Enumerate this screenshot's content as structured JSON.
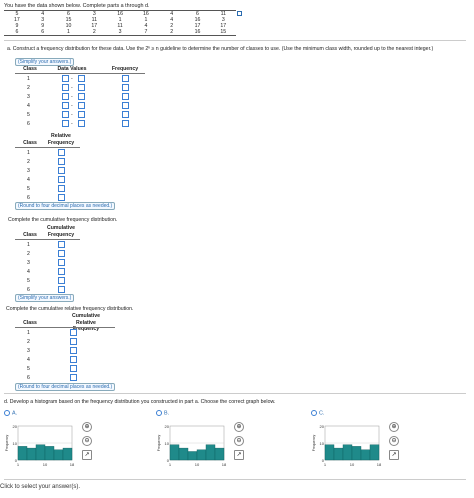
{
  "intro": "You have the data shown below. Complete parts a through d.",
  "raw_data": [
    [
      "5",
      "4",
      "6",
      "3",
      "16",
      "16",
      "4",
      "6",
      "11"
    ],
    [
      "17",
      "3",
      "15",
      "11",
      "1",
      "1",
      "4",
      "16",
      "3"
    ],
    [
      "9",
      "9",
      "10",
      "17",
      "11",
      "4",
      "2",
      "17",
      "17"
    ],
    [
      "6",
      "6",
      "1",
      "2",
      "3",
      "7",
      "2",
      "16",
      "15"
    ]
  ],
  "part_a": "a. Construct a frequency distribution for these data. Use the 2ᵏ ≥ n guideline to determine the number of classes to use. (Use the minimum class width, rounded up to the nearest integer.)",
  "simplify_hint": "(Simplify your answers.)",
  "round_hint": "(Round to four decimal places as needed.)",
  "headers": {
    "class": "Class",
    "data_values": "Data Values",
    "frequency": "Frequency",
    "relative_1": "Relative",
    "relative_2": "Frequency",
    "cum_1": "Cumulative",
    "cum_2": "Frequency",
    "cumrel_1": "Cumulative",
    "cumrel_2": "Relative Frequency"
  },
  "classes": [
    "1",
    "2",
    "3",
    "4",
    "5",
    "6"
  ],
  "dash": "-",
  "cum_prompt": "Complete the cumulative frequency distribution.",
  "cumrel_prompt": "Complete the cumulative relative frequency distribution.",
  "part_d": "d. Develop a histogram based on the frequency distribution you constructed in part a. Choose the correct graph below.",
  "options": [
    {
      "label": "A.",
      "values": [
        8,
        7,
        9,
        8,
        6,
        7
      ]
    },
    {
      "label": "B.",
      "values": [
        9,
        7,
        5,
        6,
        9,
        7
      ]
    },
    {
      "label": "C.",
      "values": [
        9,
        7,
        9,
        8,
        6,
        9
      ]
    }
  ],
  "graph": {
    "ylabel": "Frequency",
    "yticks": [
      "20",
      "10",
      "0"
    ],
    "xticks": [
      "1",
      "10",
      "18"
    ],
    "ymax": 20
  },
  "footer": "Click to select your answer(s).",
  "colors": {
    "accent": "#2b6cb0",
    "bar": "#1f8a8a"
  }
}
